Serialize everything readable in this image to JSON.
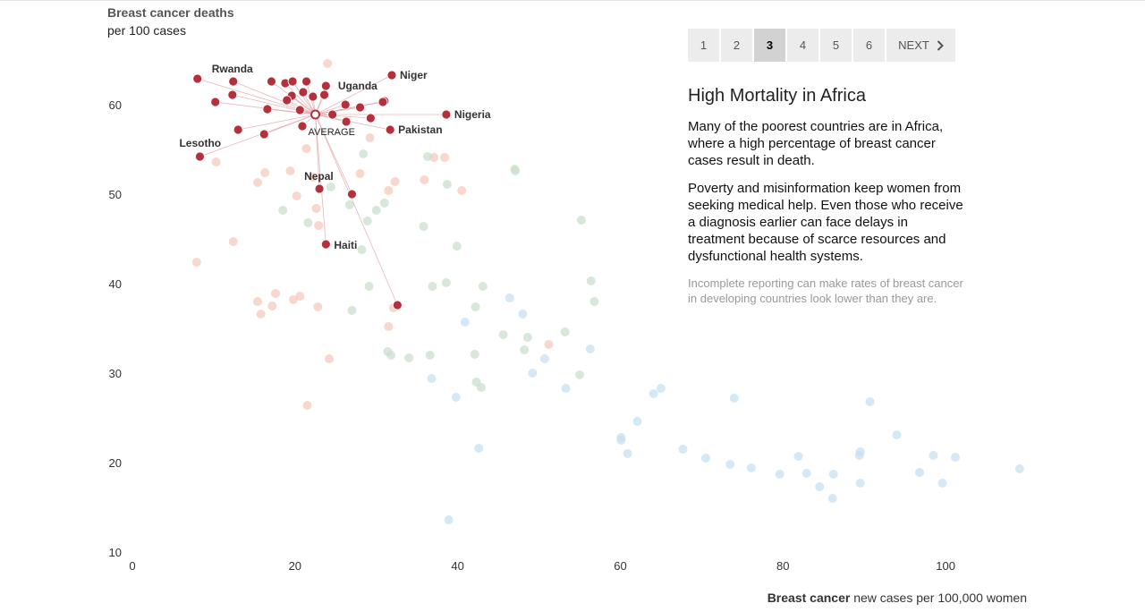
{
  "pager": {
    "pages": [
      "1",
      "2",
      "3",
      "4",
      "5",
      "6"
    ],
    "active_index": 2,
    "next_label": "NEXT"
  },
  "panel": {
    "title": "High Mortality in Africa",
    "paragraphs": [
      "Many of the poorest countries are in Africa, where a high percentage of breast cancer cases result in death.",
      "Poverty and misinformation keep women from seeking medical help. Even those who receive a diagnosis earlier can face delays in treatment because of scarce resources and dysfunctional health systems."
    ],
    "note": "Incomplete reporting can make rates of breast cancer in developing countries look lower than they are."
  },
  "chart_data": {
    "type": "scatter",
    "ylabel": "Breast cancer deaths",
    "ylabel_sub": "per 100 cases",
    "xlabel_bold": "Breast cancer",
    "xlabel_rest": " new cases per 100,000 women",
    "xlim": [
      0,
      110
    ],
    "ylim": [
      10,
      66
    ],
    "x_ticks": [
      0,
      20,
      40,
      60,
      80,
      100
    ],
    "y_ticks": [
      10,
      20,
      30,
      40,
      50,
      60
    ],
    "colors": {
      "highlight": "#b5303b",
      "faded_red": "#f6c9bb",
      "faded_green": "#c9dfcc",
      "faded_blue": "#c5e0f2",
      "link_line": "#e3a3a6"
    },
    "average": {
      "label": "AVERAGE",
      "x": 22.5,
      "y": 58.9
    },
    "highlighted": [
      {
        "name": "Rwanda",
        "x": 12.4,
        "y": 62.6
      },
      {
        "name": "Niger",
        "x": 31.9,
        "y": 63.3
      },
      {
        "name": "Uganda",
        "x": 31.0,
        "y": 60.4
      },
      {
        "name": "Nigeria",
        "x": 38.6,
        "y": 58.9
      },
      {
        "name": "Pakistan",
        "x": 31.7,
        "y": 57.2
      },
      {
        "name": "Lesotho",
        "x": 8.3,
        "y": 54.2
      },
      {
        "name": "Nepal",
        "x": 23.0,
        "y": 50.6
      },
      {
        "name": "Haiti",
        "x": 23.8,
        "y": 44.4
      },
      {
        "name": "",
        "x": 8.0,
        "y": 62.9
      },
      {
        "name": "",
        "x": 17.1,
        "y": 62.6
      },
      {
        "name": "",
        "x": 18.8,
        "y": 62.4
      },
      {
        "name": "",
        "x": 19.7,
        "y": 62.6
      },
      {
        "name": "",
        "x": 21.4,
        "y": 62.6
      },
      {
        "name": "",
        "x": 23.8,
        "y": 62.1
      },
      {
        "name": "",
        "x": 12.3,
        "y": 61.1
      },
      {
        "name": "",
        "x": 19.6,
        "y": 61.0
      },
      {
        "name": "",
        "x": 21.0,
        "y": 61.4
      },
      {
        "name": "",
        "x": 23.6,
        "y": 61.1
      },
      {
        "name": "",
        "x": 10.2,
        "y": 60.3
      },
      {
        "name": "",
        "x": 19.0,
        "y": 60.5
      },
      {
        "name": "",
        "x": 22.2,
        "y": 60.9
      },
      {
        "name": "",
        "x": 26.2,
        "y": 60.0
      },
      {
        "name": "",
        "x": 28.0,
        "y": 59.7
      },
      {
        "name": "",
        "x": 30.8,
        "y": 60.3
      },
      {
        "name": "",
        "x": 16.6,
        "y": 59.5
      },
      {
        "name": "",
        "x": 20.6,
        "y": 59.4
      },
      {
        "name": "",
        "x": 24.6,
        "y": 58.9
      },
      {
        "name": "",
        "x": 29.3,
        "y": 58.5
      },
      {
        "name": "",
        "x": 26.3,
        "y": 58.1
      },
      {
        "name": "",
        "x": 20.9,
        "y": 57.6
      },
      {
        "name": "",
        "x": 13.0,
        "y": 57.2
      },
      {
        "name": "",
        "x": 16.2,
        "y": 56.7
      },
      {
        "name": "",
        "x": 27.0,
        "y": 50.0
      },
      {
        "name": "",
        "x": 32.6,
        "y": 37.6
      }
    ],
    "faded_red": [
      [
        24.0,
        64.6
      ],
      [
        10.3,
        53.6
      ],
      [
        16.3,
        52.4
      ],
      [
        19.4,
        52.6
      ],
      [
        15.4,
        51.3
      ],
      [
        22.2,
        51.9
      ],
      [
        28.0,
        52.3
      ],
      [
        32.3,
        51.4
      ],
      [
        20.2,
        49.8
      ],
      [
        31.5,
        50.4
      ],
      [
        22.6,
        48.4
      ],
      [
        22.9,
        46.5
      ],
      [
        12.4,
        44.7
      ],
      [
        7.9,
        42.4
      ],
      [
        15.4,
        38.0
      ],
      [
        17.2,
        37.5
      ],
      [
        17.6,
        38.9
      ],
      [
        15.8,
        36.6
      ],
      [
        19.8,
        38.2
      ],
      [
        20.6,
        38.6
      ],
      [
        22.8,
        37.4
      ],
      [
        31.5,
        35.2
      ],
      [
        32.1,
        37.3
      ],
      [
        24.2,
        31.6
      ],
      [
        21.5,
        26.4
      ],
      [
        35.9,
        51.6
      ],
      [
        38.4,
        54.1
      ],
      [
        40.5,
        50.4
      ],
      [
        51.2,
        33.2
      ],
      [
        29.2,
        56.3
      ],
      [
        21.4,
        55.1
      ],
      [
        37.1,
        54.1
      ]
    ],
    "faded_green": [
      [
        28.4,
        54.5
      ],
      [
        36.3,
        54.2
      ],
      [
        38.7,
        51.1
      ],
      [
        24.4,
        50.8
      ],
      [
        18.5,
        48.2
      ],
      [
        21.6,
        46.8
      ],
      [
        28.9,
        47.0
      ],
      [
        30.0,
        48.2
      ],
      [
        31.0,
        49.0
      ],
      [
        35.8,
        46.4
      ],
      [
        39.9,
        44.2
      ],
      [
        28.2,
        43.8
      ],
      [
        29.1,
        39.7
      ],
      [
        36.9,
        39.7
      ],
      [
        38.6,
        40.1
      ],
      [
        27.0,
        37.0
      ],
      [
        31.4,
        32.4
      ],
      [
        31.8,
        32.0
      ],
      [
        34.0,
        31.7
      ],
      [
        36.6,
        32.0
      ],
      [
        42.2,
        37.4
      ],
      [
        43.1,
        39.7
      ],
      [
        45.6,
        34.3
      ],
      [
        48.6,
        34.0
      ],
      [
        48.2,
        32.6
      ],
      [
        47.0,
        52.8
      ],
      [
        55.2,
        47.1
      ],
      [
        56.4,
        40.3
      ],
      [
        56.8,
        38.0
      ],
      [
        53.2,
        34.6
      ],
      [
        42.1,
        32.1
      ],
      [
        42.3,
        29.0
      ],
      [
        42.9,
        28.4
      ],
      [
        55.0,
        29.8
      ],
      [
        47.1,
        52.6
      ],
      [
        26.7,
        48.8
      ]
    ],
    "faded_blue": [
      [
        40.9,
        35.7
      ],
      [
        46.4,
        38.4
      ],
      [
        48.0,
        36.6
      ],
      [
        50.7,
        31.6
      ],
      [
        49.2,
        30.0
      ],
      [
        56.3,
        32.7
      ],
      [
        53.3,
        28.3
      ],
      [
        36.8,
        29.4
      ],
      [
        39.8,
        27.3
      ],
      [
        42.6,
        21.6
      ],
      [
        38.9,
        13.6
      ],
      [
        60.1,
        22.5
      ],
      [
        60.1,
        22.8
      ],
      [
        60.9,
        21.0
      ],
      [
        62.1,
        24.6
      ],
      [
        64.1,
        27.7
      ],
      [
        65.0,
        28.3
      ],
      [
        67.7,
        21.5
      ],
      [
        70.5,
        20.5
      ],
      [
        73.5,
        19.8
      ],
      [
        74.0,
        27.2
      ],
      [
        76.1,
        19.4
      ],
      [
        79.6,
        18.7
      ],
      [
        81.9,
        20.7
      ],
      [
        82.9,
        18.8
      ],
      [
        84.5,
        17.3
      ],
      [
        86.1,
        16.0
      ],
      [
        86.2,
        18.7
      ],
      [
        89.4,
        20.8
      ],
      [
        89.5,
        21.2
      ],
      [
        89.5,
        17.7
      ],
      [
        90.7,
        26.8
      ],
      [
        94.0,
        23.1
      ],
      [
        96.8,
        18.9
      ],
      [
        98.5,
        20.8
      ],
      [
        99.6,
        17.7
      ],
      [
        101.2,
        20.6
      ],
      [
        109.1,
        19.3
      ]
    ]
  }
}
